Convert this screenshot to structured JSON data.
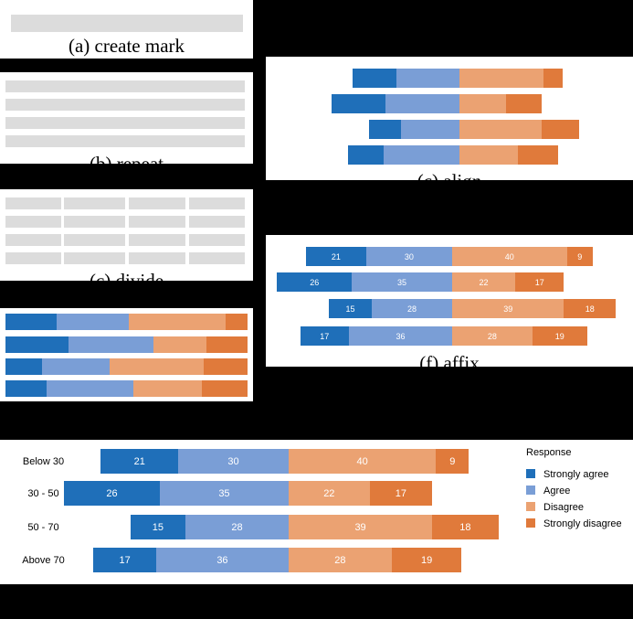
{
  "captions": {
    "a": "(a) create mark",
    "b": "(b) repeat",
    "c": "(c) divide",
    "c2": "(c) align",
    "f": "(f) affix"
  },
  "colors": {
    "strongly_agree": "#1f6fb9",
    "agree": "#7a9ed6",
    "disagree": "#eba272",
    "strongly_disagree": "#e07a3b",
    "placeholder": "#dcdcdc"
  },
  "chart_data": {
    "type": "bar",
    "stacked": "diverging",
    "categories": [
      "Below 30",
      "30 - 50",
      "50 - 70",
      "Above 70"
    ],
    "series": [
      {
        "name": "Strongly agree",
        "values": [
          21,
          26,
          15,
          17
        ]
      },
      {
        "name": "Agree",
        "values": [
          30,
          35,
          28,
          36
        ]
      },
      {
        "name": "Disagree",
        "values": [
          40,
          22,
          39,
          28
        ]
      },
      {
        "name": "Strongly disagree",
        "values": [
          9,
          17,
          18,
          19
        ]
      }
    ],
    "legend_title": "Response",
    "legend_position": "right"
  }
}
